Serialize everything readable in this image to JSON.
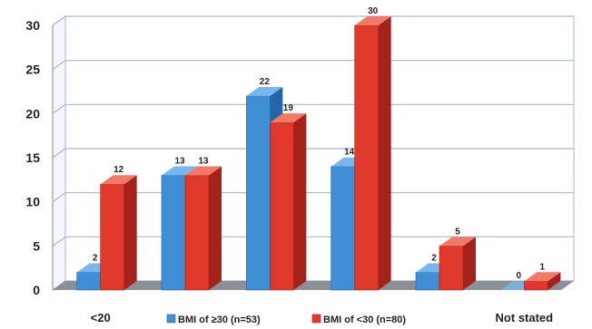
{
  "header_text": "... (partially visible top line cropped) ...",
  "colors": {
    "series1": "#3f8fd6",
    "series1_side": "#2566a8",
    "series1_top": "#78b6ec",
    "series2": "#e0382a",
    "series2_side": "#a4221a",
    "series2_top": "#f07a66",
    "grid": "#a9b8d6",
    "floor": "#8a8f98",
    "wall": "#ffffff"
  },
  "chart_data": {
    "type": "bar",
    "categories": [
      "<20",
      "",
      "",
      "",
      "",
      "Not stated"
    ],
    "series": [
      {
        "name": "BMI of ≥30 (n=53)",
        "values": [
          2,
          13,
          22,
          14,
          2,
          0
        ]
      },
      {
        "name": "BMI of <30 (n=80)",
        "values": [
          12,
          13,
          19,
          30,
          5,
          1
        ]
      }
    ],
    "ylim": [
      0,
      30
    ],
    "yticks": [
      0,
      5,
      10,
      15,
      20,
      25,
      30
    ],
    "grid": true,
    "legend_position": "bottom"
  }
}
